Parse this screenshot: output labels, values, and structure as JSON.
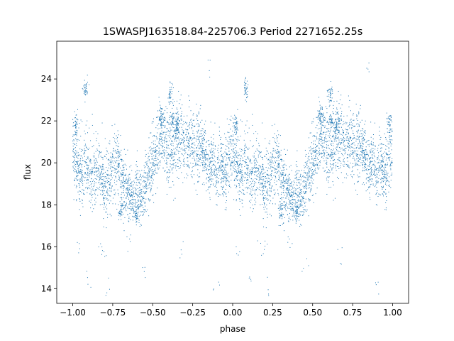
{
  "chart_data": {
    "type": "scatter",
    "title": "1SWASPJ163518.84-225706.3 Period 2271652.25s",
    "xlabel": "phase",
    "ylabel": "flux",
    "xlim": [
      -1.1,
      1.1
    ],
    "ylim": [
      13.3,
      25.8
    ],
    "xticks": [
      -1.0,
      -0.75,
      -0.5,
      -0.25,
      0.0,
      0.25,
      0.5,
      0.75,
      1.0
    ],
    "xtick_labels": [
      "−1.00",
      "−0.75",
      "−0.50",
      "−0.25",
      "0.00",
      "0.25",
      "0.50",
      "0.75",
      "1.00"
    ],
    "yticks": [
      14,
      16,
      18,
      20,
      22,
      24
    ],
    "ytick_labels": [
      "14",
      "16",
      "18",
      "20",
      "22",
      "24"
    ],
    "grid": false,
    "marker_color": "#1f77b4",
    "profile": {
      "phase": [
        0.0,
        0.02,
        0.05,
        0.08,
        0.1,
        0.13,
        0.15,
        0.18,
        0.2,
        0.23,
        0.25,
        0.28,
        0.3,
        0.33,
        0.35,
        0.38,
        0.4,
        0.43,
        0.45,
        0.48,
        0.5,
        0.53,
        0.55,
        0.58,
        0.6,
        0.63,
        0.65,
        0.68,
        0.7,
        0.73,
        0.75,
        0.78,
        0.8,
        0.83,
        0.85,
        0.88,
        0.9,
        0.93,
        0.95,
        0.98,
        1.0
      ],
      "flux": [
        20.5,
        20.0,
        19.4,
        20.0,
        19.7,
        19.3,
        19.8,
        19.2,
        19.0,
        19.5,
        19.6,
        20.0,
        19.4,
        18.8,
        18.4,
        18.2,
        18.6,
        18.3,
        18.8,
        19.5,
        20.0,
        20.6,
        21.3,
        21.0,
        20.3,
        20.6,
        21.2,
        21.5,
        20.8,
        21.0,
        21.1,
        20.7,
        20.9,
        20.2,
        19.8,
        20.1,
        19.5,
        19.9,
        19.3,
        20.3,
        20.5
      ],
      "spread": [
        1.0,
        1.2,
        1.3,
        1.2,
        1.1,
        1.2,
        1.0,
        1.0,
        1.1,
        1.0,
        1.1,
        1.0,
        1.0,
        1.0,
        0.8,
        0.7,
        0.8,
        0.8,
        1.0,
        1.1,
        1.1,
        1.0,
        1.1,
        1.2,
        1.2,
        1.3,
        1.2,
        1.1,
        1.0,
        1.0,
        1.0,
        1.1,
        1.1,
        1.0,
        0.9,
        0.9,
        1.0,
        1.0,
        1.1,
        1.2,
        1.0
      ]
    },
    "clumps": [
      {
        "phase": -0.45,
        "flux": 22.2
      },
      {
        "phase": -0.38,
        "flux": 22.0
      },
      {
        "phase": -0.35,
        "flux": 21.8
      },
      {
        "phase": 0.55,
        "flux": 22.2
      },
      {
        "phase": 0.62,
        "flux": 22.0
      },
      {
        "phase": 0.65,
        "flux": 21.8
      },
      {
        "phase": -0.39,
        "flux": 23.3
      },
      {
        "phase": 0.61,
        "flux": 23.3
      },
      {
        "phase": -0.92,
        "flux": 23.5
      },
      {
        "phase": 0.08,
        "flux": 23.5
      },
      {
        "phase": -0.7,
        "flux": 17.7
      },
      {
        "phase": -0.6,
        "flux": 17.6
      },
      {
        "phase": 0.3,
        "flux": 17.7
      },
      {
        "phase": 0.4,
        "flux": 17.6
      },
      {
        "phase": -0.98,
        "flux": 21.8
      },
      {
        "phase": 0.02,
        "flux": 21.8
      },
      {
        "phase": 0.98,
        "flux": 21.8
      }
    ],
    "outliers": [
      {
        "phase": -0.97,
        "flux": 15.9
      },
      {
        "phase": 0.03,
        "flux": 15.9
      },
      {
        "phase": -0.82,
        "flux": 16.0
      },
      {
        "phase": 0.18,
        "flux": 16.0
      },
      {
        "phase": -0.8,
        "flux": 15.8
      },
      {
        "phase": 0.2,
        "flux": 15.8
      },
      {
        "phase": -0.9,
        "flux": 14.4
      },
      {
        "phase": 0.1,
        "flux": 14.4
      },
      {
        "phase": -0.55,
        "flux": 15.1
      },
      {
        "phase": 0.45,
        "flux": 15.1
      },
      {
        "phase": -0.15,
        "flux": 24.6
      },
      {
        "phase": 0.85,
        "flux": 24.6
      },
      {
        "phase": -0.78,
        "flux": 13.9
      },
      {
        "phase": 0.22,
        "flux": 13.9
      },
      {
        "phase": -0.1,
        "flux": 14.2
      },
      {
        "phase": 0.9,
        "flux": 14.2
      },
      {
        "phase": -0.33,
        "flux": 15.7
      },
      {
        "phase": 0.67,
        "flux": 15.7
      },
      {
        "phase": -0.65,
        "flux": 16.3
      },
      {
        "phase": 0.35,
        "flux": 16.3
      }
    ]
  }
}
